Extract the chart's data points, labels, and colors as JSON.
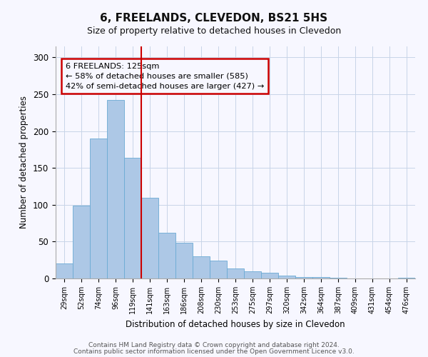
{
  "title": "6, FREELANDS, CLEVEDON, BS21 5HS",
  "subtitle": "Size of property relative to detached houses in Clevedon",
  "xlabel": "Distribution of detached houses by size in Clevedon",
  "ylabel": "Number of detached properties",
  "categories": [
    "29sqm",
    "52sqm",
    "74sqm",
    "96sqm",
    "119sqm",
    "141sqm",
    "163sqm",
    "186sqm",
    "208sqm",
    "230sqm",
    "253sqm",
    "275sqm",
    "297sqm",
    "320sqm",
    "342sqm",
    "364sqm",
    "387sqm",
    "409sqm",
    "431sqm",
    "454sqm",
    "476sqm"
  ],
  "values": [
    20,
    99,
    190,
    242,
    164,
    110,
    62,
    48,
    30,
    24,
    14,
    10,
    8,
    4,
    2,
    2,
    1,
    0,
    0,
    0,
    1
  ],
  "bar_color": "#adc8e6",
  "bar_edge_color": "#6baad4",
  "vline_x": 4.5,
  "vline_color": "#cc0000",
  "annotation_text": "6 FREELANDS: 125sqm\n← 58% of detached houses are smaller (585)\n42% of semi-detached houses are larger (427) →",
  "annotation_box_edge": "#cc0000",
  "ylim": [
    0,
    315
  ],
  "yticks": [
    0,
    50,
    100,
    150,
    200,
    250,
    300
  ],
  "footer1": "Contains HM Land Registry data © Crown copyright and database right 2024.",
  "footer2": "Contains public sector information licensed under the Open Government Licence v3.0.",
  "bg_color": "#f7f7ff",
  "grid_color": "#c8d4e8"
}
